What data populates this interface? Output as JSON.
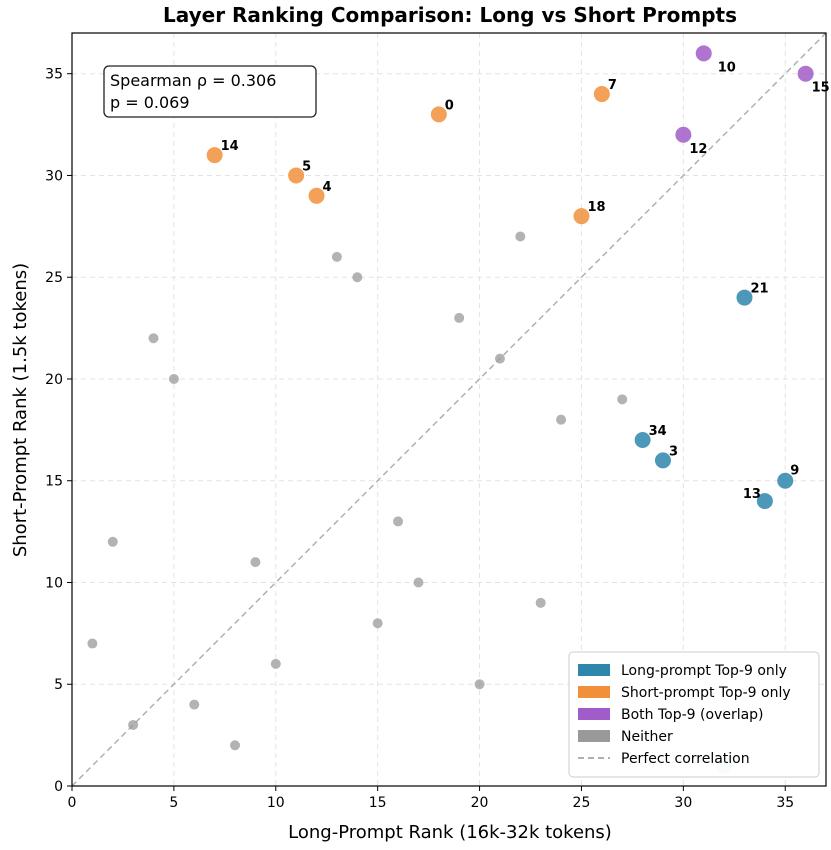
{
  "chart_data": {
    "type": "scatter",
    "title": "Layer Ranking Comparison: Long vs Short Prompts",
    "xlabel": "Long-Prompt Rank (16k-32k tokens)",
    "ylabel": "Short-Prompt Rank (1.5k tokens)",
    "xlim": [
      0,
      37
    ],
    "ylim": [
      0,
      37
    ],
    "xticks": [
      0,
      5,
      10,
      15,
      20,
      25,
      30,
      35
    ],
    "yticks": [
      0,
      5,
      10,
      15,
      20,
      25,
      30,
      35
    ],
    "grid": true,
    "legend_position": "bottom-right",
    "annotation": {
      "line1": "Spearman ρ = 0.306",
      "line2": "p = 0.069"
    },
    "colors": {
      "long": "#2e86ab",
      "short": "#f18f3b",
      "both": "#a05cc8",
      "neither": "#999999",
      "diagonal": "#b0b0b0"
    },
    "legend": [
      {
        "label": "Long-prompt Top-9 only",
        "group": "long",
        "kind": "patch"
      },
      {
        "label": "Short-prompt Top-9 only",
        "group": "short",
        "kind": "patch"
      },
      {
        "label": "Both Top-9 (overlap)",
        "group": "both",
        "kind": "patch"
      },
      {
        "label": "Neither",
        "group": "neither",
        "kind": "patch"
      },
      {
        "label": "Perfect correlation",
        "group": "diagonal",
        "kind": "line"
      }
    ],
    "series": [
      {
        "group": "long",
        "points": [
          {
            "layer": "21",
            "x": 33,
            "y": 24
          },
          {
            "layer": "34",
            "x": 28,
            "y": 17
          },
          {
            "layer": "3",
            "x": 29,
            "y": 16
          },
          {
            "layer": "9",
            "x": 35,
            "y": 15
          },
          {
            "layer": "13",
            "x": 34,
            "y": 14
          },
          {
            "layer": "1",
            "x": 32,
            "y": 1
          }
        ]
      },
      {
        "group": "short",
        "points": [
          {
            "layer": "14",
            "x": 7,
            "y": 31
          },
          {
            "layer": "5",
            "x": 11,
            "y": 30
          },
          {
            "layer": "4",
            "x": 12,
            "y": 29
          },
          {
            "layer": "0",
            "x": 18,
            "y": 33
          },
          {
            "layer": "7",
            "x": 26,
            "y": 34
          },
          {
            "layer": "18",
            "x": 25,
            "y": 28
          }
        ]
      },
      {
        "group": "both",
        "points": [
          {
            "layer": "10",
            "x": 31,
            "y": 36
          },
          {
            "layer": "15",
            "x": 36,
            "y": 35
          },
          {
            "layer": "12",
            "x": 30,
            "y": 32
          }
        ]
      },
      {
        "group": "neither",
        "points": [
          {
            "x": 1,
            "y": 7
          },
          {
            "x": 2,
            "y": 12
          },
          {
            "x": 3,
            "y": 3
          },
          {
            "x": 4,
            "y": 22
          },
          {
            "x": 5,
            "y": 20
          },
          {
            "x": 6,
            "y": 4
          },
          {
            "x": 8,
            "y": 2
          },
          {
            "x": 9,
            "y": 11
          },
          {
            "x": 10,
            "y": 6
          },
          {
            "x": 13,
            "y": 26
          },
          {
            "x": 14,
            "y": 25
          },
          {
            "x": 15,
            "y": 8
          },
          {
            "x": 16,
            "y": 13
          },
          {
            "x": 17,
            "y": 10
          },
          {
            "x": 19,
            "y": 23
          },
          {
            "x": 20,
            "y": 5
          },
          {
            "x": 21,
            "y": 21
          },
          {
            "x": 22,
            "y": 27
          },
          {
            "x": 23,
            "y": 9
          },
          {
            "x": 24,
            "y": 18
          },
          {
            "x": 27,
            "y": 19
          }
        ]
      }
    ]
  }
}
